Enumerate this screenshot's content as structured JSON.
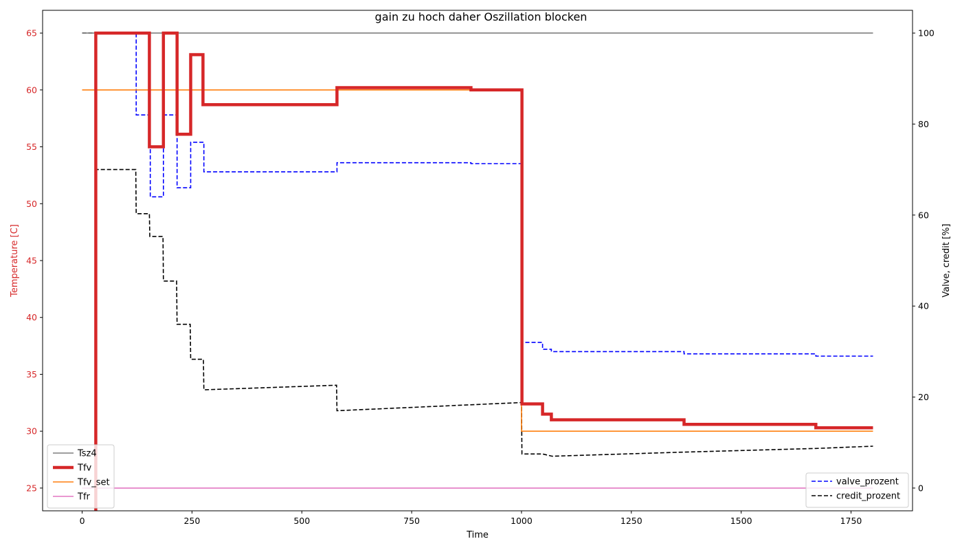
{
  "chart_data": {
    "type": "line",
    "title": "gain zu hoch daher Oszillation blocken",
    "xlabel": "Time",
    "ylabel_left": "Temperature [C]",
    "ylabel_right": "Valve, credit [%]",
    "xlim": [
      -90,
      1890
    ],
    "ylim_left": [
      23,
      67
    ],
    "ylim_right": [
      -5,
      105
    ],
    "xticks": [
      0,
      250,
      500,
      750,
      1000,
      1250,
      1500,
      1750
    ],
    "yticks_left": [
      25,
      30,
      35,
      40,
      45,
      50,
      55,
      60,
      65
    ],
    "yticks_right": [
      0,
      20,
      40,
      60,
      80,
      100
    ],
    "left_axis_color": "#d62728",
    "grid": false,
    "legend_left": {
      "placement": "lower-left",
      "entries": [
        "Tsz4",
        "Tfv",
        "Tfv_set",
        "Tfr"
      ]
    },
    "legend_right": {
      "placement": "lower-right",
      "entries": [
        "valve_prozent",
        "credit_prozent"
      ]
    },
    "series_left": [
      {
        "name": "Tsz4",
        "color": "#7f7f7f",
        "style": "solid",
        "width": 1.6,
        "x": [
          0,
          1800
        ],
        "y": [
          65,
          65
        ]
      },
      {
        "name": "Tfv",
        "color": "#d62728",
        "style": "solid",
        "width": 4.5,
        "step": true,
        "x": [
          30,
          31,
          153,
          185,
          216,
          247,
          275,
          580,
          885,
          1001,
          1048,
          1068,
          1370,
          1670,
          1800
        ],
        "y": [
          23,
          65,
          55,
          65,
          56.1,
          63.1,
          58.7,
          60.2,
          60.0,
          32.4,
          31.5,
          31.0,
          30.6,
          30.3,
          30.3
        ]
      },
      {
        "name": "Tfv_set",
        "color": "#ff7f0e",
        "style": "solid",
        "width": 1.6,
        "step": true,
        "x": [
          0,
          1000,
          1800
        ],
        "y": [
          60,
          30,
          30
        ]
      },
      {
        "name": "Tfr",
        "color": "#e377c2",
        "style": "solid",
        "width": 1.6,
        "x": [
          0,
          1800
        ],
        "y": [
          25,
          25
        ]
      }
    ],
    "series_right": [
      {
        "name": "valve_prozent",
        "color": "#0000ff",
        "style": "dashed",
        "width": 1.6,
        "step": true,
        "x": [
          28,
          30,
          123,
          155,
          185,
          216,
          247,
          277,
          580,
          885,
          1001,
          1048,
          1068,
          1370,
          1670,
          1800
        ],
        "y": [
          -5,
          100,
          82,
          64,
          82,
          66,
          76,
          69.5,
          71.5,
          71.3,
          32,
          30.5,
          30,
          29.5,
          29,
          29
        ]
      },
      {
        "name": "credit_prozent",
        "color": "#000000",
        "style": "dashed",
        "width": 1.6,
        "x": [
          0,
          30,
          31,
          122,
          123,
          153,
          154,
          184,
          185,
          215,
          216,
          246,
          247,
          276,
          277,
          579,
          580,
          1000,
          1001,
          1048,
          1070,
          1370,
          1670,
          1800
        ],
        "y": [
          100,
          100,
          70,
          70,
          60.3,
          60.3,
          55.3,
          55.3,
          45.5,
          45.5,
          36,
          36,
          28.3,
          28.3,
          21.6,
          22.6,
          17,
          18.8,
          7.5,
          7.5,
          7,
          7.9,
          8.7,
          9.2
        ]
      }
    ]
  }
}
